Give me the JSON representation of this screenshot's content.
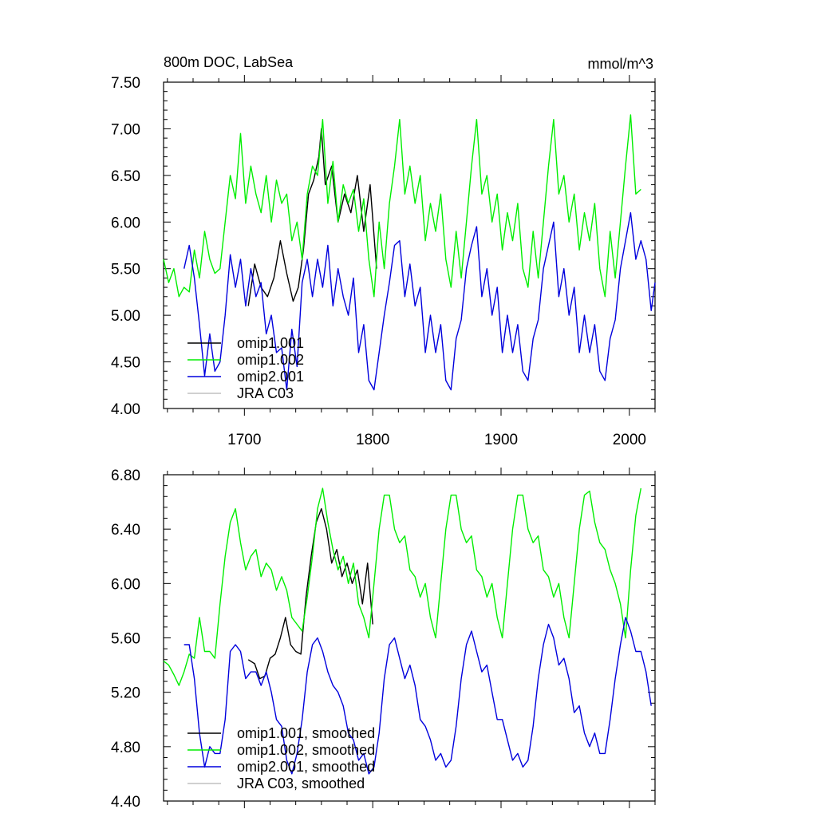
{
  "colors": {
    "omip1_001": "#000000",
    "omip1_002": "#00ee00",
    "omip2_001": "#0000dd",
    "jra_c03": "#c0c0c0"
  },
  "chart_data": [
    {
      "type": "line",
      "title": "800m DOC, LabSea",
      "units": "mmol/m^3",
      "xlim": [
        1637,
        2020
      ],
      "ylim": [
        4.0,
        7.5
      ],
      "xticks": [
        1700,
        1800,
        1900,
        2000
      ],
      "xtick_labels": [
        "1700",
        "1800",
        "1900",
        "2000"
      ],
      "yticks": [
        4.0,
        4.5,
        5.0,
        5.5,
        6.0,
        6.5,
        7.0,
        7.5
      ],
      "ytick_labels": [
        "4.00",
        "4.50",
        "5.00",
        "5.50",
        "6.00",
        "6.50",
        "7.00",
        "7.50"
      ],
      "legend_position": "bottom-left",
      "series": [
        {
          "name": "omip1.001",
          "color": "#000000",
          "x": [
            1703,
            1708,
            1713,
            1718,
            1723,
            1728,
            1733,
            1738,
            1742,
            1746,
            1750,
            1754,
            1758,
            1760,
            1763,
            1768,
            1773,
            1778,
            1783,
            1788,
            1793,
            1798,
            1803
          ],
          "y": [
            5.1,
            5.55,
            5.3,
            5.2,
            5.4,
            5.8,
            5.45,
            5.15,
            5.3,
            5.7,
            6.3,
            6.45,
            6.7,
            7.0,
            6.4,
            6.6,
            6.0,
            6.3,
            6.1,
            6.5,
            5.9,
            6.4,
            5.5
          ]
        },
        {
          "name": "omip1.002",
          "color": "#00ee00",
          "x": [
            1637,
            1641,
            1645,
            1649,
            1653,
            1657,
            1661,
            1665,
            1669,
            1673,
            1677,
            1681,
            1685,
            1689,
            1693,
            1697,
            1701,
            1705,
            1709,
            1713,
            1717,
            1721,
            1725,
            1729,
            1733,
            1737,
            1741,
            1745,
            1749,
            1753,
            1757,
            1761,
            1765,
            1769,
            1773,
            1777,
            1781,
            1785,
            1789,
            1793,
            1797,
            1801,
            1805,
            1809,
            1813,
            1817,
            1821,
            1825,
            1829,
            1833,
            1837,
            1841,
            1845,
            1849,
            1853,
            1857,
            1861,
            1865,
            1869,
            1873,
            1877,
            1881,
            1885,
            1889,
            1893,
            1897,
            1901,
            1905,
            1909,
            1913,
            1917,
            1921,
            1925,
            1929,
            1933,
            1937,
            1941,
            1945,
            1949,
            1953,
            1957,
            1961,
            1965,
            1969,
            1973,
            1977,
            1981,
            1985,
            1989,
            1993,
            1997,
            2001,
            2005,
            2009
          ],
          "y": [
            5.6,
            5.35,
            5.5,
            5.2,
            5.3,
            5.25,
            5.7,
            5.4,
            5.9,
            5.6,
            5.45,
            5.5,
            6.0,
            6.5,
            6.25,
            6.95,
            6.2,
            6.6,
            6.3,
            6.1,
            6.5,
            6.0,
            6.45,
            6.2,
            6.3,
            5.8,
            6.0,
            5.6,
            6.3,
            6.6,
            6.5,
            7.1,
            6.2,
            6.65,
            6.0,
            6.4,
            6.2,
            6.35,
            5.9,
            6.25,
            5.6,
            5.2,
            6.0,
            5.5,
            6.2,
            6.6,
            7.1,
            6.3,
            6.6,
            6.2,
            6.5,
            5.8,
            6.2,
            5.9,
            6.3,
            5.6,
            5.3,
            5.9,
            5.4,
            6.0,
            6.6,
            7.1,
            6.3,
            6.5,
            6.0,
            6.3,
            5.7,
            6.1,
            5.8,
            6.2,
            5.5,
            5.3,
            5.9,
            5.4,
            6.0,
            6.6,
            7.1,
            6.3,
            6.5,
            6.0,
            6.3,
            5.7,
            6.1,
            5.8,
            6.2,
            5.5,
            5.2,
            5.9,
            5.4,
            6.0,
            6.6,
            7.15,
            6.3,
            6.35
          ]
        },
        {
          "name": "omip2.001",
          "color": "#0000dd",
          "x": [
            1653,
            1657,
            1661,
            1665,
            1669,
            1673,
            1677,
            1681,
            1685,
            1689,
            1693,
            1697,
            1701,
            1705,
            1709,
            1713,
            1717,
            1721,
            1725,
            1729,
            1733,
            1737,
            1741,
            1745,
            1749,
            1753,
            1757,
            1761,
            1765,
            1769,
            1773,
            1777,
            1781,
            1785,
            1789,
            1793,
            1797,
            1801,
            1805,
            1809,
            1813,
            1817,
            1821,
            1825,
            1829,
            1833,
            1837,
            1841,
            1845,
            1849,
            1853,
            1857,
            1861,
            1865,
            1869,
            1873,
            1877,
            1881,
            1885,
            1889,
            1893,
            1897,
            1901,
            1905,
            1909,
            1913,
            1917,
            1921,
            1925,
            1929,
            1933,
            1937,
            1941,
            1945,
            1949,
            1953,
            1957,
            1961,
            1965,
            1969,
            1973,
            1977,
            1981,
            1985,
            1989,
            1993,
            1997,
            2001,
            2005,
            2009,
            2013,
            2017,
            2020
          ],
          "y": [
            5.5,
            5.75,
            5.4,
            4.9,
            4.35,
            4.8,
            4.4,
            4.5,
            5.0,
            5.65,
            5.3,
            5.6,
            5.1,
            5.5,
            5.2,
            5.35,
            4.8,
            5.0,
            4.6,
            4.65,
            4.2,
            4.85,
            4.45,
            5.35,
            5.6,
            5.2,
            5.6,
            5.3,
            5.75,
            5.1,
            5.5,
            5.2,
            5.0,
            5.4,
            4.6,
            4.9,
            4.3,
            4.2,
            4.6,
            5.0,
            5.35,
            5.75,
            5.8,
            5.2,
            5.55,
            5.1,
            5.3,
            4.6,
            5.0,
            4.6,
            4.9,
            4.3,
            4.2,
            4.75,
            4.95,
            5.5,
            5.75,
            5.95,
            5.2,
            5.5,
            5.0,
            5.3,
            4.6,
            5.0,
            4.6,
            4.9,
            4.4,
            4.3,
            4.75,
            4.95,
            5.5,
            5.75,
            6.0,
            5.2,
            5.5,
            5.0,
            5.3,
            4.6,
            5.0,
            4.6,
            4.9,
            4.4,
            4.3,
            4.75,
            4.95,
            5.5,
            5.8,
            6.1,
            5.6,
            5.8,
            5.6,
            5.05,
            5.35
          ]
        },
        {
          "name": "JRA C03",
          "color": "#c0c0c0",
          "x": [],
          "y": []
        }
      ]
    },
    {
      "type": "line",
      "title": "",
      "units": "",
      "xlim": [
        1637,
        2020
      ],
      "ylim": [
        4.4,
        6.8
      ],
      "xticks": [
        1700,
        1800,
        1900,
        2000
      ],
      "xtick_labels": [
        "",
        "",
        "",
        ""
      ],
      "yticks": [
        4.4,
        4.8,
        5.2,
        5.6,
        6.0,
        6.4,
        6.8
      ],
      "ytick_labels": [
        "4.40",
        "4.80",
        "5.20",
        "5.60",
        "6.00",
        "6.40",
        "6.80"
      ],
      "legend_position": "bottom-left",
      "series": [
        {
          "name": "omip1.001, smoothed",
          "color": "#000000",
          "x": [
            1703,
            1708,
            1712,
            1716,
            1720,
            1724,
            1728,
            1732,
            1736,
            1740,
            1744,
            1748,
            1752,
            1756,
            1760,
            1764,
            1768,
            1772,
            1776,
            1780,
            1784,
            1788,
            1792,
            1796,
            1800
          ],
          "y": [
            5.44,
            5.41,
            5.3,
            5.32,
            5.45,
            5.48,
            5.6,
            5.75,
            5.55,
            5.5,
            5.48,
            5.9,
            6.2,
            6.45,
            6.55,
            6.4,
            6.15,
            6.25,
            6.05,
            6.15,
            6.0,
            6.1,
            5.85,
            6.15,
            5.7
          ]
        },
        {
          "name": "omip1.002, smoothed",
          "color": "#00ee00",
          "x": [
            1637,
            1641,
            1645,
            1649,
            1653,
            1657,
            1661,
            1665,
            1669,
            1673,
            1677,
            1681,
            1685,
            1689,
            1693,
            1697,
            1701,
            1705,
            1709,
            1713,
            1717,
            1721,
            1725,
            1729,
            1733,
            1737,
            1741,
            1745,
            1749,
            1753,
            1757,
            1761,
            1765,
            1769,
            1773,
            1777,
            1781,
            1785,
            1789,
            1793,
            1797,
            1801,
            1805,
            1809,
            1813,
            1817,
            1821,
            1825,
            1829,
            1833,
            1837,
            1841,
            1845,
            1849,
            1853,
            1857,
            1861,
            1865,
            1869,
            1873,
            1877,
            1881,
            1885,
            1889,
            1893,
            1897,
            1901,
            1905,
            1909,
            1913,
            1917,
            1921,
            1925,
            1929,
            1933,
            1937,
            1941,
            1945,
            1949,
            1953,
            1957,
            1961,
            1965,
            1969,
            1973,
            1977,
            1981,
            1985,
            1989,
            1993,
            1997,
            2001,
            2005,
            2009
          ],
          "y": [
            5.43,
            5.4,
            5.33,
            5.25,
            5.35,
            5.48,
            5.45,
            5.75,
            5.5,
            5.5,
            5.45,
            5.85,
            6.2,
            6.45,
            6.55,
            6.3,
            6.1,
            6.2,
            6.25,
            6.05,
            6.15,
            6.1,
            5.95,
            6.05,
            5.95,
            5.75,
            5.7,
            5.65,
            5.9,
            6.2,
            6.55,
            6.7,
            6.45,
            6.25,
            6.1,
            6.2,
            6.0,
            6.15,
            5.85,
            5.75,
            5.6,
            6.0,
            6.4,
            6.65,
            6.65,
            6.4,
            6.3,
            6.35,
            6.1,
            6.05,
            5.9,
            6.0,
            5.75,
            5.6,
            6.0,
            6.4,
            6.65,
            6.65,
            6.4,
            6.3,
            6.35,
            6.1,
            6.05,
            5.9,
            6.0,
            5.75,
            5.6,
            6.0,
            6.4,
            6.65,
            6.65,
            6.4,
            6.3,
            6.35,
            6.1,
            6.05,
            5.9,
            6.0,
            5.75,
            5.6,
            6.0,
            6.4,
            6.65,
            6.68,
            6.45,
            6.3,
            6.25,
            6.1,
            6.0,
            5.85,
            5.6,
            6.1,
            6.5,
            6.7
          ]
        },
        {
          "name": "omip2.001, smoothed",
          "color": "#0000dd",
          "x": [
            1653,
            1657,
            1661,
            1665,
            1669,
            1673,
            1677,
            1681,
            1685,
            1689,
            1693,
            1697,
            1701,
            1705,
            1709,
            1713,
            1717,
            1721,
            1725,
            1729,
            1733,
            1737,
            1741,
            1745,
            1749,
            1753,
            1757,
            1761,
            1765,
            1769,
            1773,
            1777,
            1781,
            1785,
            1789,
            1793,
            1797,
            1801,
            1805,
            1809,
            1813,
            1817,
            1821,
            1825,
            1829,
            1833,
            1837,
            1841,
            1845,
            1849,
            1853,
            1857,
            1861,
            1865,
            1869,
            1873,
            1877,
            1881,
            1885,
            1889,
            1893,
            1897,
            1901,
            1905,
            1909,
            1913,
            1917,
            1921,
            1925,
            1929,
            1933,
            1937,
            1941,
            1945,
            1949,
            1953,
            1957,
            1961,
            1965,
            1969,
            1973,
            1977,
            1981,
            1985,
            1989,
            1993,
            1997,
            2001,
            2005,
            2009,
            2013,
            2017
          ],
          "y": [
            5.55,
            5.55,
            5.3,
            4.9,
            4.65,
            4.8,
            4.75,
            4.75,
            5.0,
            5.5,
            5.55,
            5.5,
            5.3,
            5.35,
            5.35,
            5.25,
            5.35,
            5.2,
            5.0,
            4.95,
            4.7,
            4.6,
            4.75,
            5.0,
            5.35,
            5.55,
            5.6,
            5.5,
            5.35,
            5.25,
            5.2,
            5.1,
            4.9,
            4.85,
            4.7,
            4.75,
            4.6,
            4.65,
            4.9,
            5.3,
            5.55,
            5.6,
            5.45,
            5.3,
            5.4,
            5.25,
            5.0,
            4.95,
            4.85,
            4.7,
            4.75,
            4.65,
            4.7,
            4.95,
            5.3,
            5.55,
            5.65,
            5.5,
            5.35,
            5.4,
            5.2,
            5.0,
            5.0,
            4.85,
            4.7,
            4.75,
            4.65,
            4.7,
            4.95,
            5.3,
            5.55,
            5.7,
            5.6,
            5.4,
            5.45,
            5.3,
            5.05,
            5.1,
            4.9,
            4.8,
            4.9,
            4.75,
            4.75,
            5.0,
            5.3,
            5.55,
            5.75,
            5.65,
            5.5,
            5.5,
            5.35,
            5.1
          ]
        },
        {
          "name": "JRA C03, smoothed",
          "color": "#c0c0c0",
          "x": [],
          "y": []
        }
      ]
    }
  ]
}
